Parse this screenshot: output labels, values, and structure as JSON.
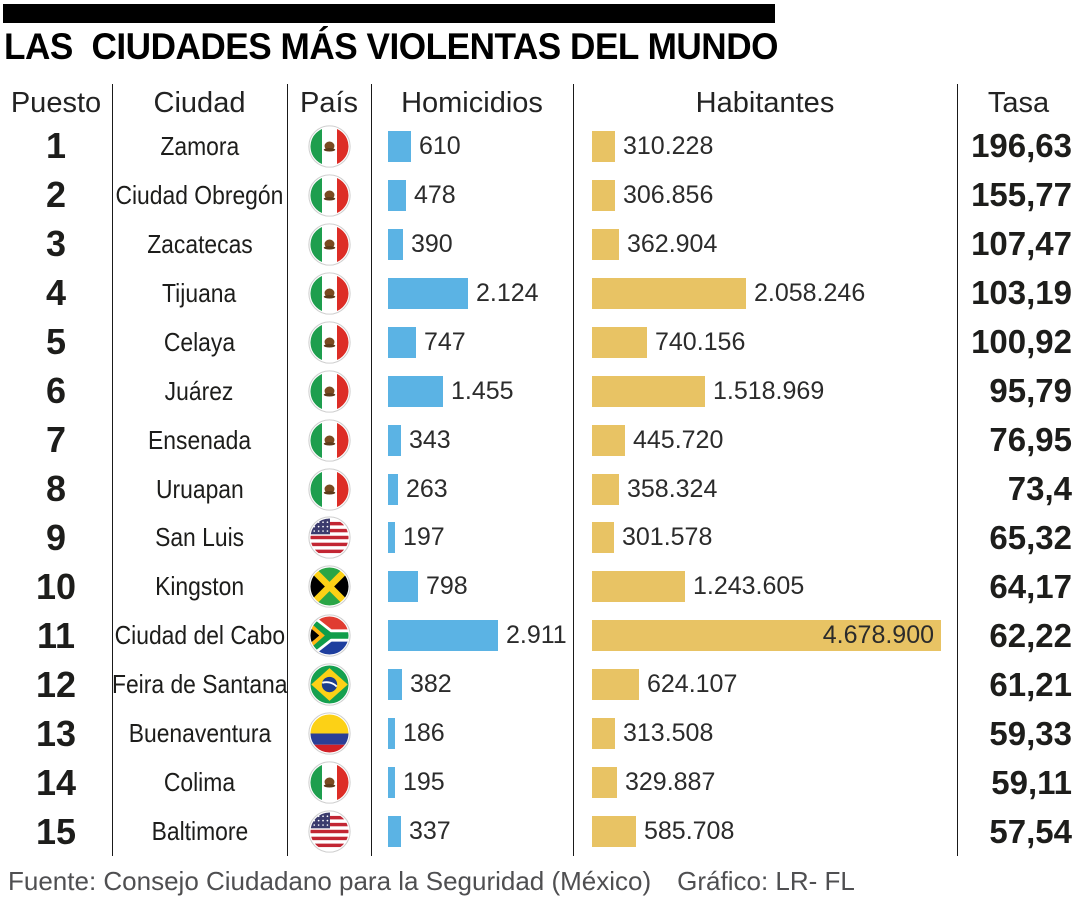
{
  "title": "LAS  CIUDADES MÁS VIOLENTAS DEL MUNDO",
  "columns": {
    "rank": "Puesto",
    "city": "Ciudad",
    "country": "País",
    "homicides": "Homicidios",
    "inhabitants": "Habitantes",
    "rate": "Tasa"
  },
  "footer": {
    "source": "Fuente: Consejo Ciudadano para la Seguridad (México)",
    "credit": "Gráfico: LR- FL"
  },
  "colors": {
    "homicides_bar": "#5BB3E4",
    "inhabitants_bar": "#E8C364",
    "top_bar": "#000000",
    "text": "#1D1D1B",
    "footer_text": "#4F4F51"
  },
  "chart_data": {
    "type": "bar",
    "title": "LAS CIUDADES MÁS VIOLENTAS DEL MUNDO",
    "categories": [
      "Zamora",
      "Ciudad Obregón",
      "Zacatecas",
      "Tijuana",
      "Celaya",
      "Juárez",
      "Ensenada",
      "Uruapan",
      "San Luis",
      "Kingston",
      "Ciudad del Cabo",
      "Feira de Santana",
      "Buenaventura",
      "Colima",
      "Baltimore"
    ],
    "series": [
      {
        "name": "Homicidios",
        "values": [
          610,
          478,
          390,
          2124,
          747,
          1455,
          343,
          263,
          197,
          798,
          2911,
          382,
          186,
          195,
          337
        ]
      },
      {
        "name": "Habitantes",
        "values": [
          310228,
          306856,
          362904,
          2058246,
          740156,
          1518969,
          445720,
          358324,
          301578,
          1243605,
          4678900,
          624107,
          313508,
          329887,
          585708
        ]
      },
      {
        "name": "Tasa",
        "values": [
          196.63,
          155.77,
          107.47,
          103.19,
          100.92,
          95.79,
          76.95,
          73.4,
          65.32,
          64.17,
          62.22,
          61.21,
          59.33,
          59.11,
          57.54
        ]
      }
    ],
    "legend": false,
    "orientation": "horizontal"
  },
  "rows": [
    {
      "rank": "1",
      "city": "Zamora",
      "country": "mx",
      "country_name": "México",
      "homicides": "610",
      "homicides_value": 610,
      "inhabitants": "310.228",
      "inhabitants_value": 310228,
      "rate": "196,63"
    },
    {
      "rank": "2",
      "city": "Ciudad Obregón",
      "country": "mx",
      "country_name": "México",
      "homicides": "478",
      "homicides_value": 478,
      "inhabitants": "306.856",
      "inhabitants_value": 306856,
      "rate": "155,77"
    },
    {
      "rank": "3",
      "city": "Zacatecas",
      "country": "mx",
      "country_name": "México",
      "homicides": "390",
      "homicides_value": 390,
      "inhabitants": "362.904",
      "inhabitants_value": 362904,
      "rate": "107,47"
    },
    {
      "rank": "4",
      "city": "Tijuana",
      "country": "mx",
      "country_name": "México",
      "homicides": "2.124",
      "homicides_value": 2124,
      "inhabitants": "2.058.246",
      "inhabitants_value": 2058246,
      "rate": "103,19"
    },
    {
      "rank": "5",
      "city": "Celaya",
      "country": "mx",
      "country_name": "México",
      "homicides": "747",
      "homicides_value": 747,
      "inhabitants": "740.156",
      "inhabitants_value": 740156,
      "rate": "100,92"
    },
    {
      "rank": "6",
      "city": "Juárez",
      "country": "mx",
      "country_name": "México",
      "homicides": "1.455",
      "homicides_value": 1455,
      "inhabitants": "1.518.969",
      "inhabitants_value": 1518969,
      "rate": "95,79"
    },
    {
      "rank": "7",
      "city": "Ensenada",
      "country": "mx",
      "country_name": "México",
      "homicides": "343",
      "homicides_value": 343,
      "inhabitants": "445.720",
      "inhabitants_value": 445720,
      "rate": "76,95"
    },
    {
      "rank": "8",
      "city": "Uruapan",
      "country": "mx",
      "country_name": "México",
      "homicides": "263",
      "homicides_value": 263,
      "inhabitants": "358.324",
      "inhabitants_value": 358324,
      "rate": "73,4"
    },
    {
      "rank": "9",
      "city": "San Luis",
      "country": "us",
      "country_name": "Estados Unidos",
      "homicides": "197",
      "homicides_value": 197,
      "inhabitants": "301.578",
      "inhabitants_value": 301578,
      "rate": "65,32"
    },
    {
      "rank": "10",
      "city": "Kingston",
      "country": "jm",
      "country_name": "Jamaica",
      "homicides": "798",
      "homicides_value": 798,
      "inhabitants": "1.243.605",
      "inhabitants_value": 1243605,
      "rate": "64,17"
    },
    {
      "rank": "11",
      "city": "Ciudad del Cabo",
      "country": "za",
      "country_name": "Sudáfrica",
      "homicides": "2.911",
      "homicides_value": 2911,
      "inhabitants": "4.678.900",
      "inhabitants_value": 4678900,
      "inhabitants_inside": true,
      "rate": "62,22"
    },
    {
      "rank": "12",
      "city": "Feira de Santana",
      "country": "br",
      "country_name": "Brasil",
      "homicides": "382",
      "homicides_value": 382,
      "inhabitants": "624.107",
      "inhabitants_value": 624107,
      "rate": "61,21"
    },
    {
      "rank": "13",
      "city": "Buenaventura",
      "country": "co",
      "country_name": "Colombia",
      "homicides": "186",
      "homicides_value": 186,
      "inhabitants": "313.508",
      "inhabitants_value": 313508,
      "rate": "59,33"
    },
    {
      "rank": "14",
      "city": "Colima",
      "country": "mx",
      "country_name": "México",
      "homicides": "195",
      "homicides_value": 195,
      "inhabitants": "329.887",
      "inhabitants_value": 329887,
      "rate": "59,11"
    },
    {
      "rank": "15",
      "city": "Baltimore",
      "country": "us",
      "country_name": "Estados Unidos",
      "homicides": "337",
      "homicides_value": 337,
      "inhabitants": "585.708",
      "inhabitants_value": 585708,
      "rate": "57,54"
    }
  ]
}
